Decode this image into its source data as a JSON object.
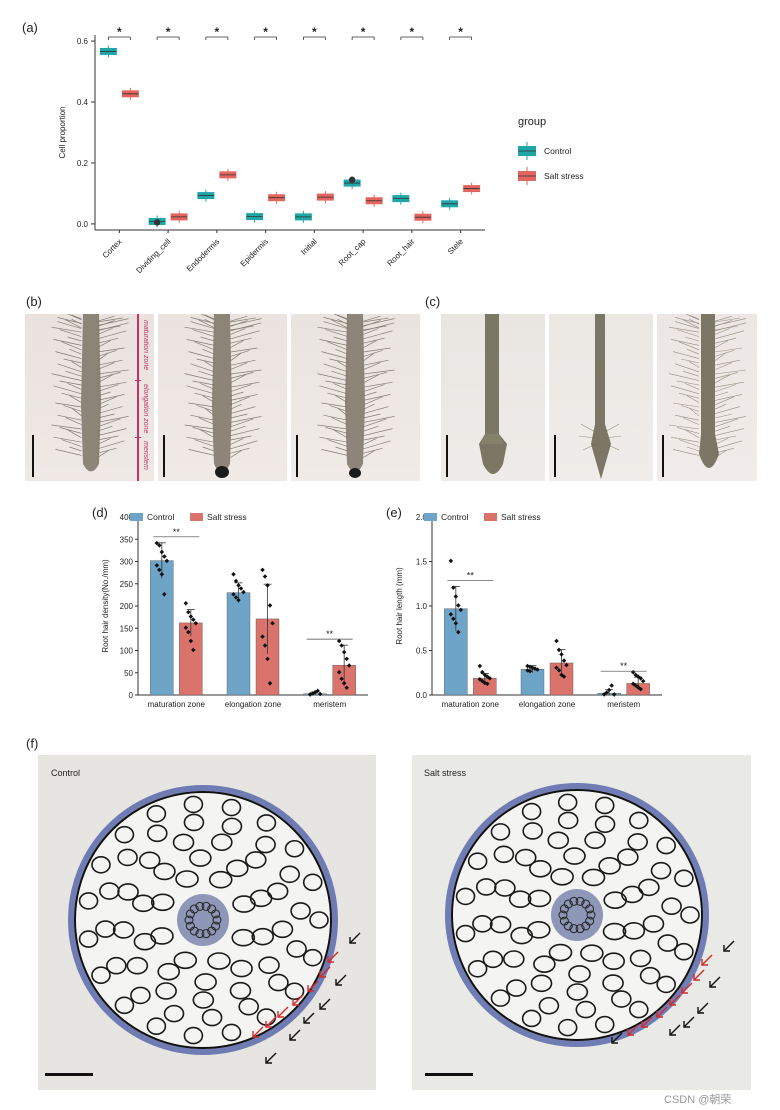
{
  "panels": {
    "a": "(a)",
    "b": "(b)",
    "c": "(c)",
    "d": "(d)",
    "e": "(e)",
    "f": "(f)"
  },
  "zone_labels": [
    "maturation zone",
    "elongation zone",
    "meristem"
  ],
  "section_labels": {
    "left": "Control",
    "right": "Salt stress"
  },
  "watermark": "CSDN @朝荣",
  "colors": {
    "control_teal": "#20a5a8",
    "salt_red": "#e2665f",
    "bar_blue": "#6fa4c9",
    "bar_red": "#d9736b",
    "zone_pink": "#c8306a",
    "arrow_red": "#d42a2a",
    "stain_blue": "#3c4ea0"
  },
  "chart_data": [
    {
      "type": "box",
      "panel": "a",
      "ylabel": "Cell proportion",
      "ylim": [
        -0.02,
        0.62
      ],
      "yticks": [
        "0.0",
        "0.2",
        "0.4",
        "0.6"
      ],
      "yticks_values": [
        0,
        0.2,
        0.4,
        0.6
      ],
      "categories": [
        "Cortex",
        "Dividing_cell",
        "Endodermis",
        "Epidermis",
        "Initial",
        "Root_cap",
        "Root_hair",
        "Stele"
      ],
      "legend_title": "group",
      "series": [
        {
          "name": "Control",
          "medians": [
            0.566,
            0.008,
            0.093,
            0.024,
            0.023,
            0.134,
            0.083,
            0.066
          ],
          "outliers": [
            [],
            [
              0.005
            ],
            [],
            [],
            [],
            [
              0.145
            ],
            [],
            []
          ]
        },
        {
          "name": "Salt stress",
          "medians": [
            0.427,
            0.023,
            0.161,
            0.086,
            0.088,
            0.076,
            0.022,
            0.116
          ],
          "outliers": [
            [],
            [],
            [],
            [],
            [],
            [],
            [],
            []
          ]
        }
      ],
      "significance": [
        "*",
        "*",
        "*",
        "*",
        "*",
        "*",
        "*",
        "*"
      ]
    },
    {
      "type": "bar",
      "panel": "d",
      "ylabel": "Root hair density(No./mm)",
      "ylim": [
        0,
        400
      ],
      "yticks": [
        "0",
        "50",
        "100",
        "150",
        "200",
        "250",
        "300",
        "350",
        "400"
      ],
      "yticks_values": [
        0,
        50,
        100,
        150,
        200,
        250,
        300,
        350,
        400
      ],
      "categories": [
        "maturation zone",
        "elongation zone",
        "meristem"
      ],
      "series": [
        {
          "name": "Control",
          "values": [
            302,
            230,
            3
          ],
          "sd": [
            40,
            22,
            4
          ],
          "points": [
            [
              340,
              335,
              320,
              310,
              300,
              290,
              280,
              270,
              225
            ],
            [
              270,
              255,
              245,
              238,
              230,
              225,
              218,
              212
            ],
            [
              0,
              2,
              5,
              8,
              1,
              0
            ]
          ]
        },
        {
          "name": "Salt stress",
          "values": [
            162,
            171,
            67
          ],
          "sd": [
            30,
            78,
            45
          ],
          "points": [
            [
              205,
              185,
              175,
              168,
              160,
              150,
              140,
              120,
              100
            ],
            [
              280,
              265,
              245,
              200,
              160,
              130,
              110,
              80,
              25
            ],
            [
              120,
              110,
              95,
              80,
              65,
              50,
              35,
              25,
              15
            ]
          ]
        }
      ],
      "significance": [
        {
          "category": 0,
          "label": "**"
        },
        {
          "category": 2,
          "label": "**"
        }
      ]
    },
    {
      "type": "bar",
      "panel": "e",
      "ylabel": "Root hair length (mm)",
      "ylim": [
        0,
        2.0
      ],
      "yticks": [
        "0.0",
        "0.5",
        "1.0",
        "1.5",
        "2.0"
      ],
      "yticks_values": [
        0,
        0.5,
        1.0,
        1.5,
        2.0
      ],
      "categories": [
        "maturation zone",
        "elongation zone",
        "meristem"
      ],
      "series": [
        {
          "name": "Control",
          "values": [
            0.97,
            0.29,
            0.02
          ],
          "sd": [
            0.25,
            0.04,
            0.04
          ],
          "points": [
            [
              1.5,
              1.2,
              1.1,
              1.0,
              0.95,
              0.9,
              0.85,
              0.8,
              0.7
            ],
            [
              0.32,
              0.31,
              0.3,
              0.29,
              0.28,
              0.27,
              0.26
            ],
            [
              0.0,
              0.02,
              0.05,
              0.1,
              0.0
            ]
          ]
        },
        {
          "name": "Salt stress",
          "values": [
            0.19,
            0.36,
            0.13
          ],
          "sd": [
            0.05,
            0.15,
            0.07
          ],
          "points": [
            [
              0.32,
              0.25,
              0.22,
              0.2,
              0.18,
              0.17,
              0.15,
              0.13,
              0.12
            ],
            [
              0.6,
              0.5,
              0.45,
              0.38,
              0.33,
              0.3,
              0.27,
              0.22,
              0.2
            ],
            [
              0.25,
              0.22,
              0.2,
              0.18,
              0.15,
              0.12,
              0.1,
              0.08,
              0.06
            ]
          ]
        }
      ],
      "significance": [
        {
          "category": 0,
          "label": "**"
        },
        {
          "category": 2,
          "label": "**"
        }
      ]
    }
  ]
}
